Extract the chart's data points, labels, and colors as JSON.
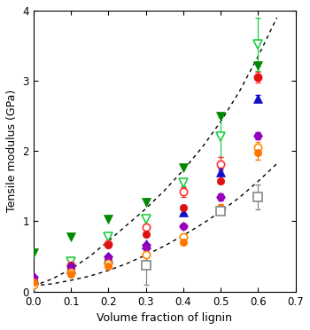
{
  "x": [
    0.0,
    0.1,
    0.2,
    0.3,
    0.4,
    0.5,
    0.6
  ],
  "series": [
    {
      "name": "green_filled_down_triangle",
      "color": "#008800",
      "marker": "v",
      "fillstyle": "full",
      "y": [
        0.55,
        0.78,
        1.03,
        1.27,
        1.77,
        2.5,
        3.22
      ],
      "yerr": [
        0.0,
        0.0,
        0.0,
        0.0,
        0.0,
        0.0,
        0.0
      ]
    },
    {
      "name": "green_open_down_triangle",
      "color": "#22cc44",
      "marker": "v",
      "fillstyle": "none",
      "y": [
        0.08,
        0.43,
        0.78,
        1.03,
        1.55,
        2.2,
        3.52
      ],
      "yerr": [
        0.0,
        0.0,
        0.0,
        0.0,
        0.05,
        0.28,
        0.38
      ]
    },
    {
      "name": "red_open_circle",
      "color": "#ff3333",
      "marker": "o",
      "fillstyle": "none",
      "y": [
        0.12,
        0.38,
        0.68,
        0.92,
        1.42,
        1.82,
        3.05
      ],
      "yerr": [
        0.0,
        0.04,
        0.04,
        0.04,
        0.07,
        0.1,
        0.08
      ]
    },
    {
      "name": "blue_filled_triangle",
      "color": "#1111cc",
      "marker": "^",
      "fillstyle": "full",
      "y": [
        0.17,
        0.33,
        0.48,
        0.68,
        1.13,
        1.7,
        2.75
      ],
      "yerr": [
        0.0,
        0.0,
        0.0,
        0.0,
        0.05,
        0.05,
        0.05
      ]
    },
    {
      "name": "red_filled_circle",
      "color": "#dd1111",
      "marker": "o",
      "fillstyle": "full",
      "y": [
        0.14,
        0.36,
        0.66,
        0.82,
        1.2,
        1.58,
        3.05
      ],
      "yerr": [
        0.0,
        0.0,
        0.0,
        0.0,
        0.0,
        0.0,
        0.0
      ]
    },
    {
      "name": "purple_filled_diamond",
      "color": "#7700bb",
      "marker": "D",
      "fillstyle": "full",
      "y": [
        0.21,
        0.36,
        0.5,
        0.66,
        0.93,
        1.35,
        2.22
      ],
      "yerr": [
        0.0,
        0.0,
        0.0,
        0.0,
        0.0,
        0.05,
        0.05
      ]
    },
    {
      "name": "purple_filled_circle",
      "color": "#9900bb",
      "marker": "o",
      "fillstyle": "full",
      "y": [
        0.18,
        0.31,
        0.46,
        0.63,
        0.93,
        1.35,
        2.22
      ],
      "yerr": [
        0.0,
        0.0,
        0.0,
        0.0,
        0.0,
        0.0,
        0.0
      ]
    },
    {
      "name": "orange_open_circle",
      "color": "#ff8800",
      "marker": "o",
      "fillstyle": "none",
      "y": [
        0.1,
        0.27,
        0.4,
        0.52,
        0.78,
        1.18,
        2.05
      ],
      "yerr": [
        0.0,
        0.0,
        0.0,
        0.0,
        0.0,
        0.0,
        0.08
      ]
    },
    {
      "name": "orange_filled_circle",
      "color": "#ff7700",
      "marker": "o",
      "fillstyle": "full",
      "y": [
        0.13,
        0.25,
        0.36,
        0.4,
        0.7,
        1.2,
        1.98
      ],
      "yerr": [
        0.0,
        0.0,
        0.0,
        0.0,
        0.0,
        0.05,
        0.1
      ]
    },
    {
      "name": "gray_open_square",
      "color": "#888888",
      "marker": "s",
      "fillstyle": "none",
      "y": [
        null,
        null,
        null,
        0.38,
        null,
        1.15,
        1.35
      ],
      "yerr": [
        0.0,
        0.0,
        0.0,
        0.28,
        0.0,
        0.0,
        0.18
      ]
    }
  ],
  "curve_upper_x": [
    0.0,
    0.05,
    0.1,
    0.15,
    0.2,
    0.25,
    0.3,
    0.35,
    0.4,
    0.45,
    0.5,
    0.55,
    0.6,
    0.65
  ],
  "curve_upper_y": [
    0.08,
    0.18,
    0.32,
    0.5,
    0.72,
    0.95,
    1.18,
    1.44,
    1.73,
    2.05,
    2.42,
    2.85,
    3.35,
    3.9
  ],
  "curve_lower_x": [
    0.0,
    0.05,
    0.1,
    0.15,
    0.2,
    0.25,
    0.3,
    0.35,
    0.4,
    0.45,
    0.5,
    0.55,
    0.6,
    0.65
  ],
  "curve_lower_y": [
    0.08,
    0.11,
    0.16,
    0.22,
    0.3,
    0.4,
    0.52,
    0.65,
    0.8,
    0.96,
    1.14,
    1.34,
    1.57,
    1.82
  ],
  "xlabel": "Volume fraction of lignin",
  "ylabel": "Tensile modulus (GPa)",
  "xlim": [
    0.0,
    0.7
  ],
  "ylim": [
    0.0,
    4.0
  ],
  "xticks": [
    0.0,
    0.1,
    0.2,
    0.3,
    0.4,
    0.5,
    0.6,
    0.7
  ],
  "yticks": [
    0,
    1,
    2,
    3,
    4
  ],
  "figsize": [
    3.5,
    3.72
  ],
  "dpi": 100
}
